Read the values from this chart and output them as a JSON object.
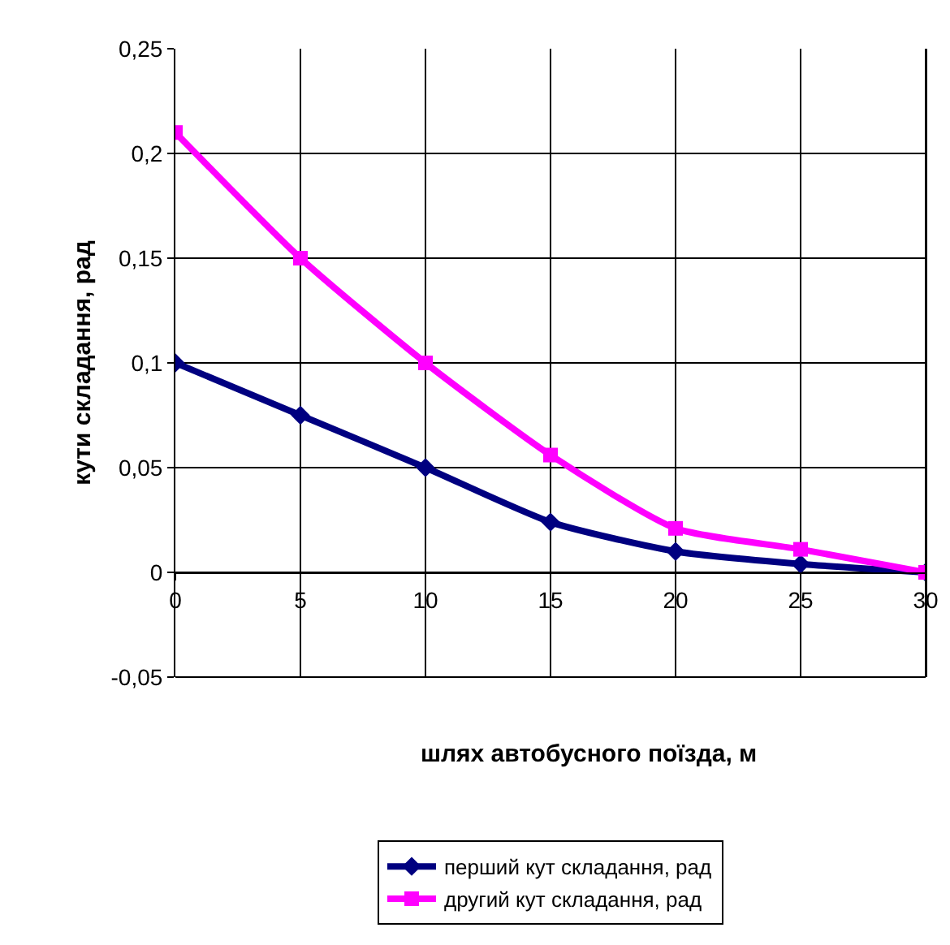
{
  "chart_data": {
    "type": "line",
    "xlabel": "шлях автобусного поїзда, м",
    "ylabel": "кути складання, рад",
    "x": [
      0,
      5,
      10,
      15,
      20,
      25,
      30
    ],
    "series": [
      {
        "name": "перший кут складання, рад",
        "color": "#000080",
        "marker": "diamond",
        "values": [
          0.1,
          0.075,
          0.05,
          0.024,
          0.01,
          0.004,
          0
        ]
      },
      {
        "name": "другий кут складання, рад",
        "color": "#ff00ff",
        "marker": "square",
        "values": [
          0.21,
          0.15,
          0.1,
          0.056,
          0.021,
          0.011,
          0
        ]
      }
    ],
    "xlim": [
      0,
      30
    ],
    "xticks": [
      0,
      5,
      10,
      15,
      20,
      25,
      30
    ],
    "ylim": [
      -0.05,
      0.25
    ],
    "yticks": [
      {
        "value": -0.05,
        "label": "-0,05"
      },
      {
        "value": 0,
        "label": "0"
      },
      {
        "value": 0.05,
        "label": "0,05"
      },
      {
        "value": 0.1,
        "label": "0,1"
      },
      {
        "value": 0.15,
        "label": "0,15"
      },
      {
        "value": 0.2,
        "label": "0,2"
      },
      {
        "value": 0.25,
        "label": "0,25"
      }
    ],
    "grid": true,
    "legend": "bottom",
    "line_style": "solid"
  }
}
